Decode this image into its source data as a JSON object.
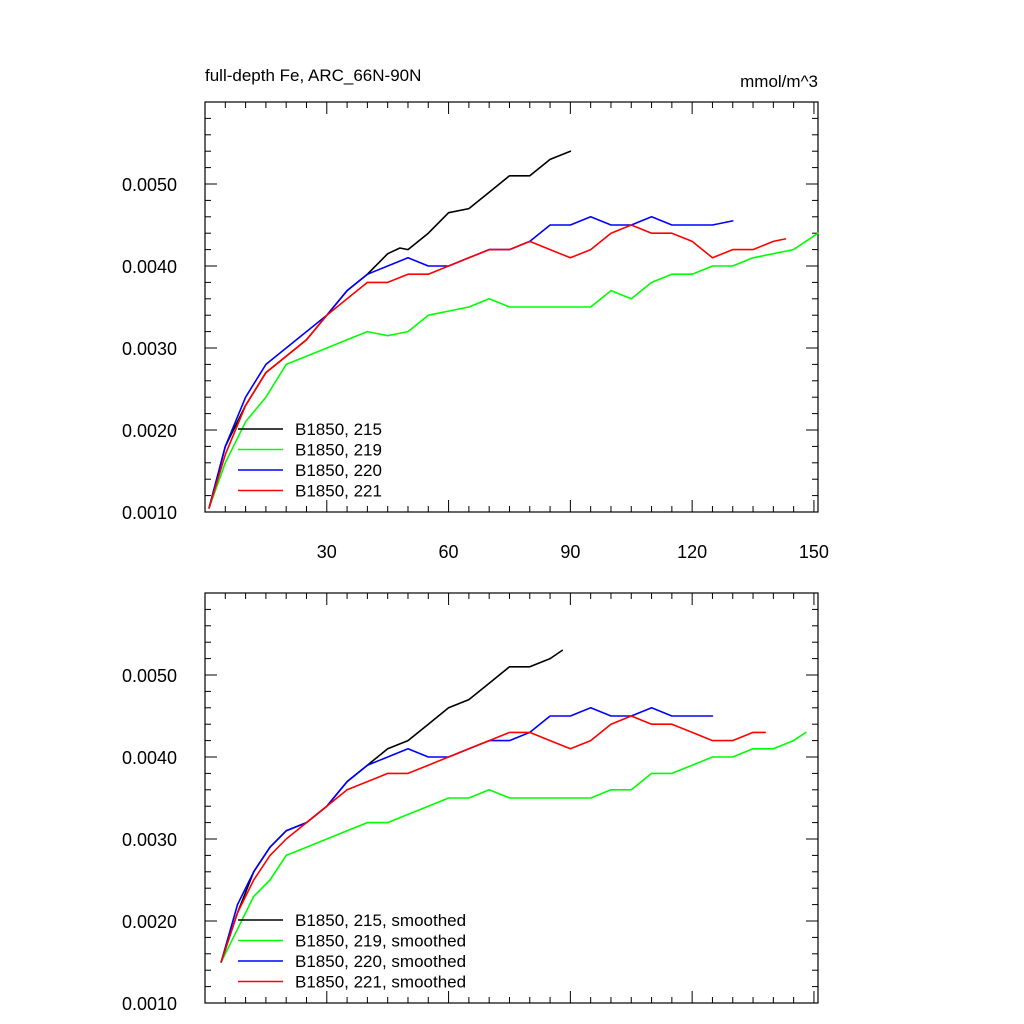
{
  "chart_data": [
    {
      "type": "line",
      "title": "full-depth Fe, ARC_66N-90N",
      "units": "mmol/m^3",
      "xlim": [
        0,
        151
      ],
      "ylim": [
        0.001,
        0.006
      ],
      "xticks": [
        30,
        60,
        90,
        120,
        150
      ],
      "xtick_labels": [
        "30",
        "60",
        "90",
        "120",
        "150"
      ],
      "yticks": [
        0.001,
        0.002,
        0.003,
        0.004,
        0.005
      ],
      "ytick_labels": [
        "0.0010",
        "0.0020",
        "0.0030",
        "0.0040",
        "0.0050"
      ],
      "legend_position": "bottom-left",
      "series": [
        {
          "name": "B1850, 215",
          "color": "#000000",
          "x": [
            1,
            5,
            10,
            15,
            20,
            25,
            30,
            35,
            40,
            45,
            48,
            50,
            55,
            60,
            65,
            70,
            75,
            78,
            80,
            85,
            90
          ],
          "y": [
            0.00105,
            0.0018,
            0.0023,
            0.0027,
            0.0029,
            0.0031,
            0.0034,
            0.0037,
            0.0039,
            0.00415,
            0.00422,
            0.0042,
            0.0044,
            0.00465,
            0.0047,
            0.0049,
            0.0051,
            0.0051,
            0.0051,
            0.0053,
            0.0054
          ]
        },
        {
          "name": "B1850, 219",
          "color": "#00ff00",
          "x": [
            1,
            5,
            10,
            15,
            20,
            25,
            30,
            35,
            40,
            45,
            50,
            55,
            60,
            65,
            70,
            75,
            80,
            85,
            90,
            95,
            100,
            105,
            110,
            115,
            120,
            125,
            130,
            135,
            140,
            145,
            151
          ],
          "y": [
            0.00105,
            0.0016,
            0.0021,
            0.0024,
            0.0028,
            0.0029,
            0.003,
            0.0031,
            0.0032,
            0.00315,
            0.0032,
            0.0034,
            0.00345,
            0.0035,
            0.0036,
            0.0035,
            0.0035,
            0.0035,
            0.0035,
            0.0035,
            0.0037,
            0.0036,
            0.0038,
            0.0039,
            0.0039,
            0.004,
            0.004,
            0.0041,
            0.00415,
            0.0042,
            0.0044
          ]
        },
        {
          "name": "B1850, 220",
          "color": "#0000ff",
          "x": [
            1,
            5,
            10,
            15,
            20,
            25,
            30,
            35,
            40,
            45,
            50,
            55,
            60,
            65,
            70,
            75,
            80,
            85,
            90,
            95,
            100,
            105,
            110,
            115,
            120,
            125,
            130
          ],
          "y": [
            0.00105,
            0.0018,
            0.0024,
            0.0028,
            0.003,
            0.0032,
            0.0034,
            0.0037,
            0.0039,
            0.004,
            0.0041,
            0.004,
            0.004,
            0.0041,
            0.0042,
            0.0042,
            0.0043,
            0.0045,
            0.0045,
            0.0046,
            0.0045,
            0.0045,
            0.0046,
            0.0045,
            0.0045,
            0.0045,
            0.00455
          ]
        },
        {
          "name": "B1850, 221",
          "color": "#ff0000",
          "x": [
            1,
            5,
            10,
            15,
            20,
            25,
            30,
            35,
            40,
            45,
            50,
            55,
            60,
            65,
            70,
            75,
            80,
            85,
            90,
            95,
            100,
            105,
            110,
            115,
            120,
            125,
            130,
            135,
            140,
            143
          ],
          "y": [
            0.00105,
            0.0017,
            0.0023,
            0.0027,
            0.0029,
            0.0031,
            0.0034,
            0.0036,
            0.0038,
            0.0038,
            0.0039,
            0.0039,
            0.004,
            0.0041,
            0.0042,
            0.0042,
            0.0043,
            0.0042,
            0.0041,
            0.0042,
            0.0044,
            0.0045,
            0.0044,
            0.0044,
            0.0043,
            0.0041,
            0.0042,
            0.0042,
            0.0043,
            0.00433
          ]
        }
      ]
    },
    {
      "type": "line",
      "xlim": [
        0,
        151
      ],
      "ylim": [
        0.001,
        0.006
      ],
      "xticks": [
        30,
        60,
        90,
        120,
        150
      ],
      "yticks": [
        0.001,
        0.002,
        0.003,
        0.004,
        0.005
      ],
      "ytick_labels": [
        "0.0010",
        "0.0020",
        "0.0030",
        "0.0040",
        "0.0050"
      ],
      "legend_position": "bottom-left",
      "series": [
        {
          "name": "B1850, 215, smoothed",
          "color": "#000000",
          "x": [
            4,
            8,
            12,
            16,
            20,
            25,
            30,
            35,
            40,
            45,
            50,
            55,
            60,
            65,
            70,
            75,
            80,
            85,
            88
          ],
          "y": [
            0.0015,
            0.0021,
            0.0026,
            0.0029,
            0.0031,
            0.0032,
            0.0034,
            0.0037,
            0.0039,
            0.0041,
            0.0042,
            0.0044,
            0.0046,
            0.0047,
            0.0049,
            0.0051,
            0.0051,
            0.0052,
            0.0053
          ]
        },
        {
          "name": "B1850, 219, smoothed",
          "color": "#00ff00",
          "x": [
            4,
            8,
            12,
            16,
            20,
            25,
            30,
            35,
            40,
            45,
            50,
            55,
            60,
            65,
            70,
            75,
            80,
            85,
            90,
            95,
            100,
            105,
            110,
            115,
            120,
            125,
            130,
            135,
            140,
            145,
            148
          ],
          "y": [
            0.0015,
            0.0019,
            0.0023,
            0.0025,
            0.0028,
            0.0029,
            0.003,
            0.0031,
            0.0032,
            0.0032,
            0.0033,
            0.0034,
            0.0035,
            0.0035,
            0.0036,
            0.0035,
            0.0035,
            0.0035,
            0.0035,
            0.0035,
            0.0036,
            0.0036,
            0.0038,
            0.0038,
            0.0039,
            0.004,
            0.004,
            0.0041,
            0.0041,
            0.0042,
            0.0043
          ]
        },
        {
          "name": "B1850, 220, smoothed",
          "color": "#0000ff",
          "x": [
            4,
            8,
            12,
            16,
            20,
            25,
            30,
            35,
            40,
            45,
            50,
            55,
            60,
            65,
            70,
            75,
            80,
            85,
            90,
            95,
            100,
            105,
            110,
            115,
            120,
            125
          ],
          "y": [
            0.0015,
            0.0022,
            0.0026,
            0.0029,
            0.0031,
            0.0032,
            0.0034,
            0.0037,
            0.0039,
            0.004,
            0.0041,
            0.004,
            0.004,
            0.0041,
            0.0042,
            0.0042,
            0.0043,
            0.0045,
            0.0045,
            0.0046,
            0.0045,
            0.0045,
            0.0046,
            0.0045,
            0.0045,
            0.0045
          ]
        },
        {
          "name": "B1850, 221, smoothed",
          "color": "#ff0000",
          "x": [
            4,
            8,
            12,
            16,
            20,
            25,
            30,
            35,
            40,
            45,
            50,
            55,
            60,
            65,
            70,
            75,
            80,
            85,
            90,
            95,
            100,
            105,
            110,
            115,
            120,
            125,
            130,
            135,
            138
          ],
          "y": [
            0.0015,
            0.0021,
            0.0025,
            0.0028,
            0.003,
            0.0032,
            0.0034,
            0.0036,
            0.0037,
            0.0038,
            0.0038,
            0.0039,
            0.004,
            0.0041,
            0.0042,
            0.0043,
            0.0043,
            0.0042,
            0.0041,
            0.0042,
            0.0044,
            0.0045,
            0.0044,
            0.0044,
            0.0043,
            0.0042,
            0.0042,
            0.0043,
            0.0043
          ]
        }
      ]
    }
  ]
}
